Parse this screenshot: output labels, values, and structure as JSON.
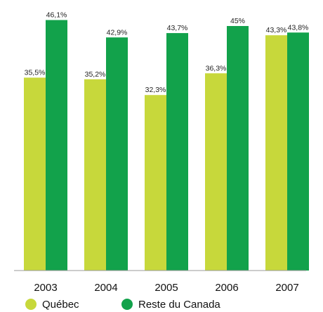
{
  "chart_data": {
    "type": "bar",
    "title": "",
    "xlabel": "",
    "ylabel": "",
    "categories": [
      "2003",
      "2004",
      "2005",
      "2006",
      "2007"
    ],
    "ylim": [
      0,
      50
    ],
    "grid": false,
    "legend_position": "bottom",
    "series": [
      {
        "name": "Québec",
        "color": "#c7d83b",
        "values": [
          35.5,
          35.2,
          32.3,
          36.3,
          43.3
        ],
        "labels": [
          "35,5%",
          "35,2%",
          "32,3%",
          "36,3%",
          "43,3%"
        ]
      },
      {
        "name": "Reste du Canada",
        "color": "#12a24b",
        "values": [
          46.1,
          42.9,
          43.7,
          45,
          43.8
        ],
        "labels": [
          "46,1%",
          "42,9%",
          "43,7%",
          "45%",
          "43,8%"
        ]
      }
    ]
  }
}
